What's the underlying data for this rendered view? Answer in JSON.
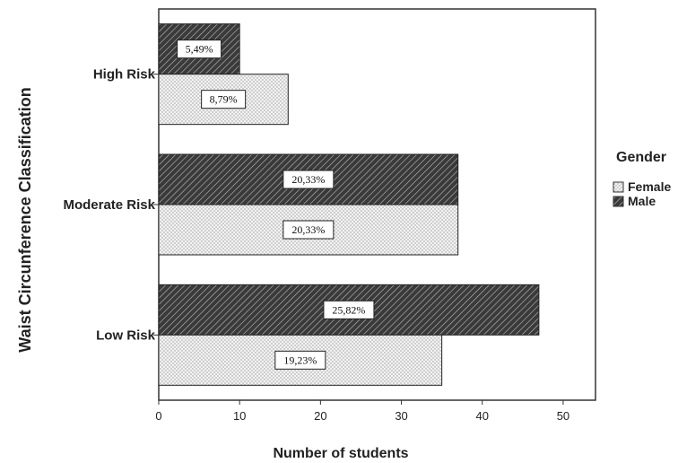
{
  "chart_data": {
    "type": "bar",
    "orientation": "horizontal",
    "categories": [
      "High Risk",
      "Moderate Risk",
      "Low Risk"
    ],
    "series": [
      {
        "name": "Male",
        "values": [
          10,
          37,
          47
        ],
        "labels": [
          "5,49%",
          "20,33%",
          "25,82%"
        ]
      },
      {
        "name": "Female",
        "values": [
          16,
          37,
          35
        ],
        "labels": [
          "8,79%",
          "20,33%",
          "19,23%"
        ]
      }
    ],
    "xlabel": "Number of students",
    "ylabel": "Waist Circunference Classification",
    "xlim": [
      0,
      54
    ],
    "xticks": [
      0,
      10,
      20,
      30,
      40,
      50
    ],
    "legend": {
      "title": "Gender",
      "position": "right",
      "entries": [
        "Female",
        "Male"
      ]
    },
    "colors": {
      "male": "#3a3a3a",
      "female": "#efefef"
    }
  }
}
